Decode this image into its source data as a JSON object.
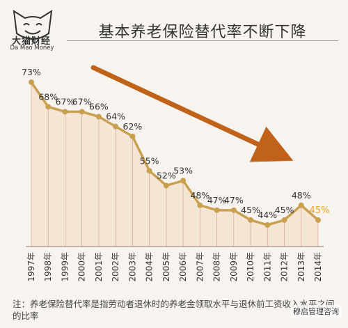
{
  "logo": {
    "name_cn": "大猫财经",
    "name_en": "Da Mao Money",
    "icon": "cat-face-icon"
  },
  "header": {
    "title": "基本养老保险替代率不断下降"
  },
  "chart_data": {
    "type": "line",
    "categories": [
      "1997年",
      "1998年",
      "1999年",
      "2000年",
      "2001年",
      "2002年",
      "2003年",
      "2004年",
      "2005年",
      "2006年",
      "2007年",
      "2008年",
      "2009年",
      "2010年",
      "2011年",
      "2012年",
      "2013年",
      "2014年"
    ],
    "values": [
      73,
      68,
      67,
      67,
      66,
      64,
      62,
      55,
      52,
      53,
      48,
      47,
      47,
      45,
      44,
      45,
      48,
      45
    ],
    "data_labels": [
      "73%",
      "68%",
      "67%",
      "67%",
      "66%",
      "64%",
      "62%",
      "55%",
      "52%",
      "53%",
      "48%",
      "47%",
      "47%",
      "45%",
      "44%",
      "45%",
      "48%",
      "45%"
    ],
    "highlight_last_label_color": "#f0a020",
    "line_color": "#c8a050",
    "fill_color": "#f5e2d0",
    "grid_color": "#d9a9a0",
    "trend_arrow_color": "#c0621a",
    "grid": true
  },
  "footnote": {
    "text": "注：养老保险替代率是指劳动者退休时的养老金领取水平与退休前工资收入水平之间的比率"
  },
  "watermark": {
    "text": "穆启管理咨询"
  }
}
